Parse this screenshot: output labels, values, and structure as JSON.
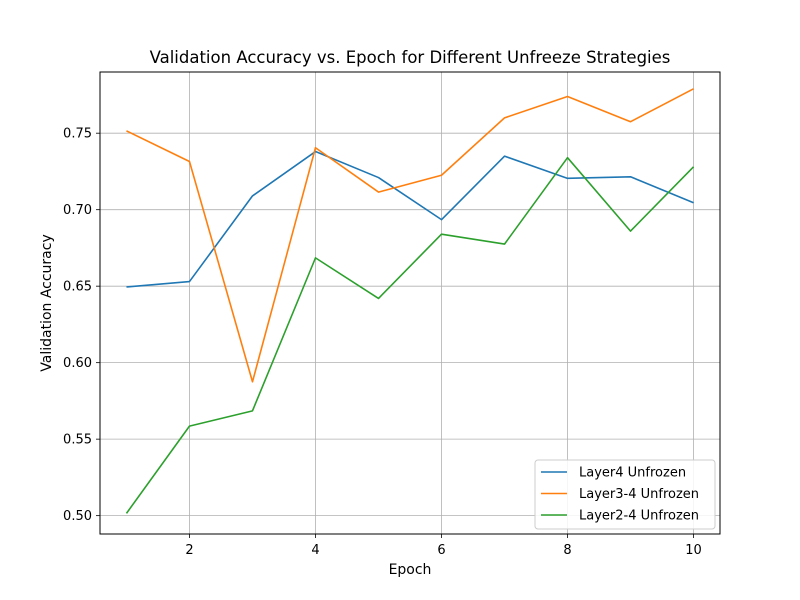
{
  "chart_data": {
    "type": "line",
    "title": "Validation Accuracy vs. Epoch for Different Unfreeze Strategies",
    "xlabel": "Epoch",
    "ylabel": "Validation Accuracy",
    "xlim": [
      0.58,
      10.42
    ],
    "ylim": [
      0.488,
      0.79
    ],
    "x_ticks": [
      2,
      4,
      6,
      8,
      10
    ],
    "y_ticks": [
      0.5,
      0.55,
      0.6,
      0.65,
      0.7,
      0.75
    ],
    "x_tick_labels": [
      "2",
      "4",
      "6",
      "8",
      "10"
    ],
    "y_tick_labels": [
      "0.50",
      "0.55",
      "0.60",
      "0.65",
      "0.70",
      "0.75"
    ],
    "grid": true,
    "legend_position": "lower-right",
    "x": [
      1,
      2,
      3,
      4,
      5,
      6,
      7,
      8,
      9,
      10
    ],
    "series": [
      {
        "name": "Layer4 Unfrozen",
        "color": "#1f77b4",
        "values": [
          0.6495,
          0.653,
          0.709,
          0.738,
          0.721,
          0.6935,
          0.735,
          0.7205,
          0.7215,
          0.7045
        ]
      },
      {
        "name": "Layer3-4 Unfrozen",
        "color": "#ff7f0e",
        "values": [
          0.7515,
          0.7315,
          0.5875,
          0.7405,
          0.7115,
          0.7225,
          0.76,
          0.774,
          0.7575,
          0.779
        ]
      },
      {
        "name": "Layer2-4 Unfrozen",
        "color": "#2ca02c",
        "values": [
          0.5015,
          0.5585,
          0.5685,
          0.6685,
          0.642,
          0.684,
          0.6775,
          0.734,
          0.686,
          0.728
        ]
      }
    ]
  }
}
